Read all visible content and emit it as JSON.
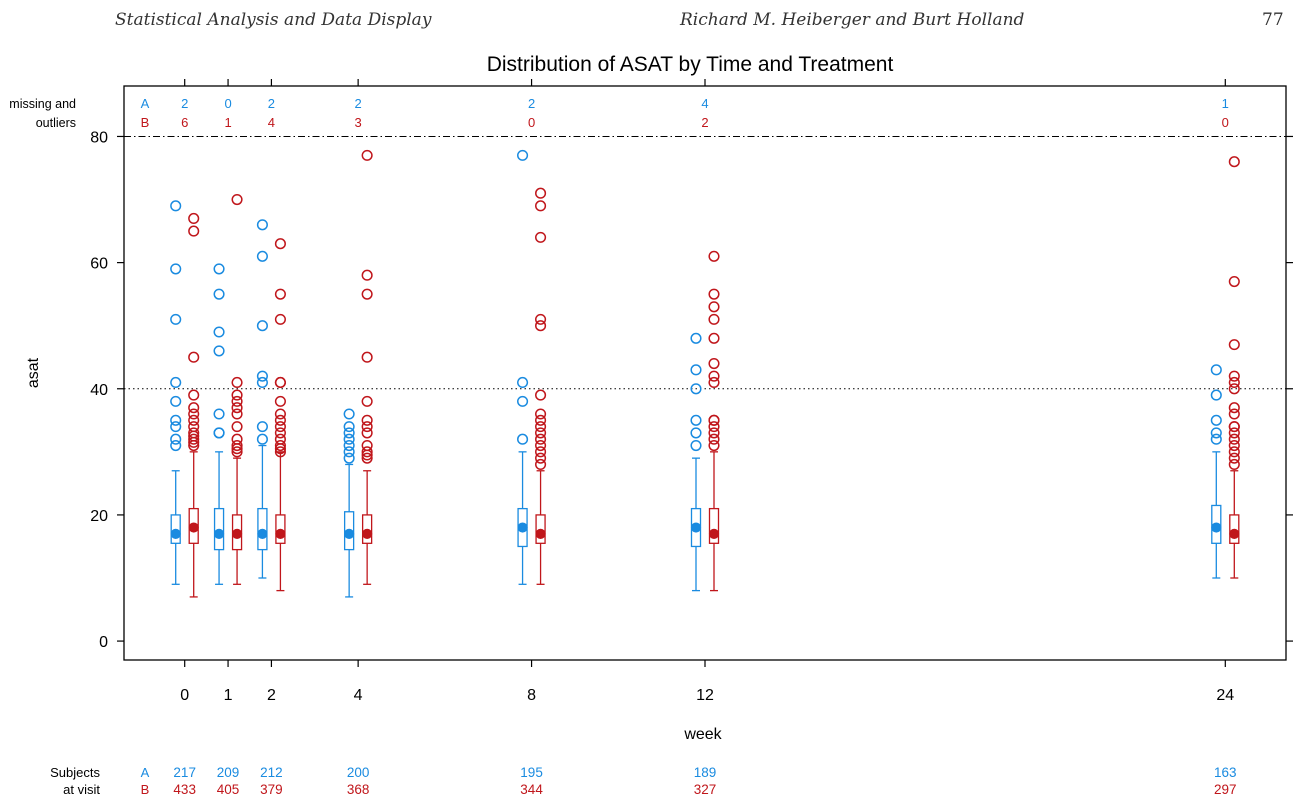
{
  "header": {
    "left": "Statistical Analysis and Data Display",
    "center": "Richard M. Heiberger and Burt Holland",
    "page_number": "77"
  },
  "colors": {
    "A": "#1a8be0",
    "B": "#c0161b"
  },
  "chart_data": {
    "type": "box",
    "title": "Distribution of ASAT by Time and Treatment",
    "xlabel": "week",
    "ylabel": "asat",
    "x_ticks": [
      0,
      1,
      2,
      4,
      8,
      12,
      24
    ],
    "y_ticks": [
      0,
      20,
      40,
      60,
      80
    ],
    "ylim": [
      -3,
      88
    ],
    "xlim": [
      -1.4,
      25.4
    ],
    "reference_lines": [
      {
        "y": 80,
        "style": "dashdot"
      },
      {
        "y": 40,
        "style": "dotted"
      }
    ],
    "missing_label": "missing and\noutliers",
    "subjects_label": "Subjects\nat visit",
    "treatments": [
      "A",
      "B"
    ],
    "missing_and_outliers": {
      "A": [
        2,
        0,
        2,
        2,
        2,
        4,
        1
      ],
      "B": [
        6,
        1,
        4,
        3,
        0,
        2,
        0
      ]
    },
    "subjects_at_visit": {
      "A": [
        217,
        209,
        212,
        200,
        195,
        189,
        163
      ],
      "B": [
        433,
        405,
        379,
        368,
        344,
        327,
        297
      ]
    },
    "series": [
      {
        "name": "A",
        "boxes": [
          {
            "week": 0,
            "min": 9,
            "q1": 15.5,
            "median": 17,
            "q3": 20,
            "max": 27,
            "outliers": [
              69,
              59,
              51,
              41,
              38,
              35,
              34,
              32,
              31
            ]
          },
          {
            "week": 1,
            "min": 9,
            "q1": 14.5,
            "median": 17,
            "q3": 21,
            "max": 30,
            "outliers": [
              59,
              55,
              49,
              46,
              36,
              33,
              33
            ]
          },
          {
            "week": 2,
            "min": 10,
            "q1": 14.5,
            "median": 17,
            "q3": 21,
            "max": 31,
            "outliers": [
              66,
              61,
              50,
              42,
              41,
              34,
              32
            ]
          },
          {
            "week": 4,
            "min": 7,
            "q1": 14.5,
            "median": 17,
            "q3": 20.5,
            "max": 28,
            "outliers": [
              36,
              34,
              33,
              32,
              31,
              30,
              29
            ]
          },
          {
            "week": 8,
            "min": 9,
            "q1": 15,
            "median": 18,
            "q3": 21,
            "max": 30,
            "outliers": [
              77,
              41,
              38,
              32
            ]
          },
          {
            "week": 12,
            "min": 8,
            "q1": 15,
            "median": 18,
            "q3": 21,
            "max": 29,
            "outliers": [
              48,
              43,
              40,
              35,
              33,
              31
            ]
          },
          {
            "week": 24,
            "min": 10,
            "q1": 15.5,
            "median": 18,
            "q3": 21.5,
            "max": 30,
            "outliers": [
              43,
              39,
              35,
              33,
              32
            ]
          }
        ]
      },
      {
        "name": "B",
        "boxes": [
          {
            "week": 0,
            "min": 7,
            "q1": 15.5,
            "median": 18,
            "q3": 21,
            "max": 30,
            "outliers": [
              67,
              65,
              45,
              39,
              37,
              36,
              35,
              34,
              33,
              32.5,
              32,
              31.5,
              31
            ]
          },
          {
            "week": 1,
            "min": 9,
            "q1": 14.5,
            "median": 17,
            "q3": 20,
            "max": 29,
            "outliers": [
              70,
              41,
              39,
              38,
              37,
              36,
              34,
              32,
              31,
              30.5,
              30
            ]
          },
          {
            "week": 2,
            "min": 8,
            "q1": 15.5,
            "median": 17,
            "q3": 20,
            "max": 30,
            "outliers": [
              63,
              55,
              51,
              41,
              41,
              38,
              36,
              35,
              34,
              33,
              32,
              31,
              30.5,
              30
            ]
          },
          {
            "week": 4,
            "min": 9,
            "q1": 15.5,
            "median": 17,
            "q3": 20,
            "max": 27,
            "outliers": [
              77,
              58,
              55,
              45,
              38,
              35,
              34,
              33,
              31,
              30,
              29.5,
              29
            ]
          },
          {
            "week": 8,
            "min": 9,
            "q1": 15.5,
            "median": 17,
            "q3": 20,
            "max": 27,
            "outliers": [
              71,
              69,
              64,
              51,
              50,
              39,
              36,
              35,
              34,
              33,
              32,
              31,
              30,
              29,
              28
            ]
          },
          {
            "week": 12,
            "min": 8,
            "q1": 15.5,
            "median": 17,
            "q3": 21,
            "max": 30,
            "outliers": [
              61,
              55,
              53,
              51,
              48,
              44,
              42,
              41,
              35,
              35,
              34,
              33,
              32,
              31
            ]
          },
          {
            "week": 24,
            "min": 10,
            "q1": 15.5,
            "median": 17,
            "q3": 20,
            "max": 27,
            "outliers": [
              76,
              57,
              47,
              42,
              41,
              40,
              37,
              36,
              34,
              34,
              33,
              32,
              31,
              30,
              29,
              28
            ]
          }
        ]
      }
    ]
  }
}
